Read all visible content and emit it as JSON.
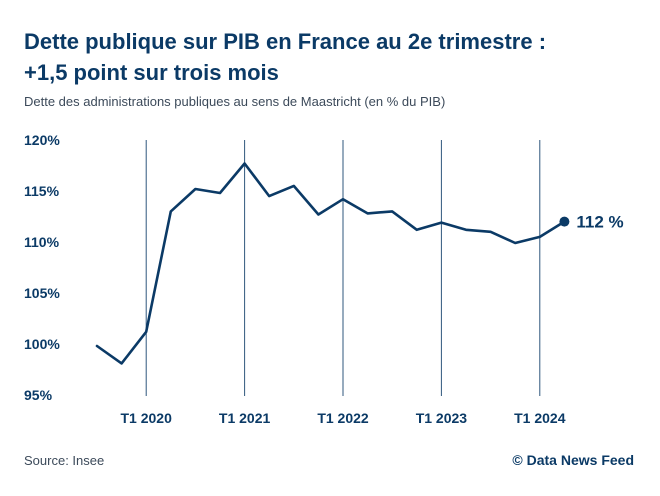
{
  "header": {
    "title_line1": "Dette publique sur PIB en France au 2e trimestre :",
    "title_line2": "+1,5 point sur trois mois",
    "subtitle": "Dette des administrations publiques au sens de Maastricht (en % du PIB)"
  },
  "footer": {
    "source": "Source: Insee",
    "credit": "© Data News Feed"
  },
  "colors": {
    "line": "#0b3a66",
    "gridline": "#0b3a66",
    "text": "#0b3a66"
  },
  "chart_data": {
    "type": "line",
    "title": "Dette publique sur PIB en France au 2e trimestre : +1,5 point sur trois mois",
    "ylim": [
      95,
      120
    ],
    "y_ticks": [
      120,
      115,
      110,
      105,
      100,
      95
    ],
    "y_tick_labels": [
      "120%",
      "115%",
      "110%",
      "105%",
      "100%",
      "95%"
    ],
    "x_ticks": [
      "T1 2020",
      "T1 2021",
      "T1 2022",
      "T1 2023",
      "T1 2024"
    ],
    "x": [
      "T3 2019",
      "T4 2019",
      "T1 2020",
      "T2 2020",
      "T3 2020",
      "T4 2020",
      "T1 2021",
      "T2 2021",
      "T3 2021",
      "T4 2021",
      "T1 2022",
      "T2 2022",
      "T3 2022",
      "T4 2022",
      "T1 2023",
      "T2 2023",
      "T3 2023",
      "T4 2023",
      "T1 2024",
      "T2 2024"
    ],
    "series": [
      {
        "values": [
          99.8,
          98.1,
          101.2,
          113.0,
          115.2,
          114.8,
          117.7,
          114.5,
          115.5,
          112.7,
          114.2,
          112.8,
          113.0,
          111.2,
          111.9,
          111.2,
          111.0,
          109.9,
          110.5,
          112.0
        ]
      }
    ],
    "end_label": "112 %",
    "grid": "vertical lines at T1 of each year"
  }
}
